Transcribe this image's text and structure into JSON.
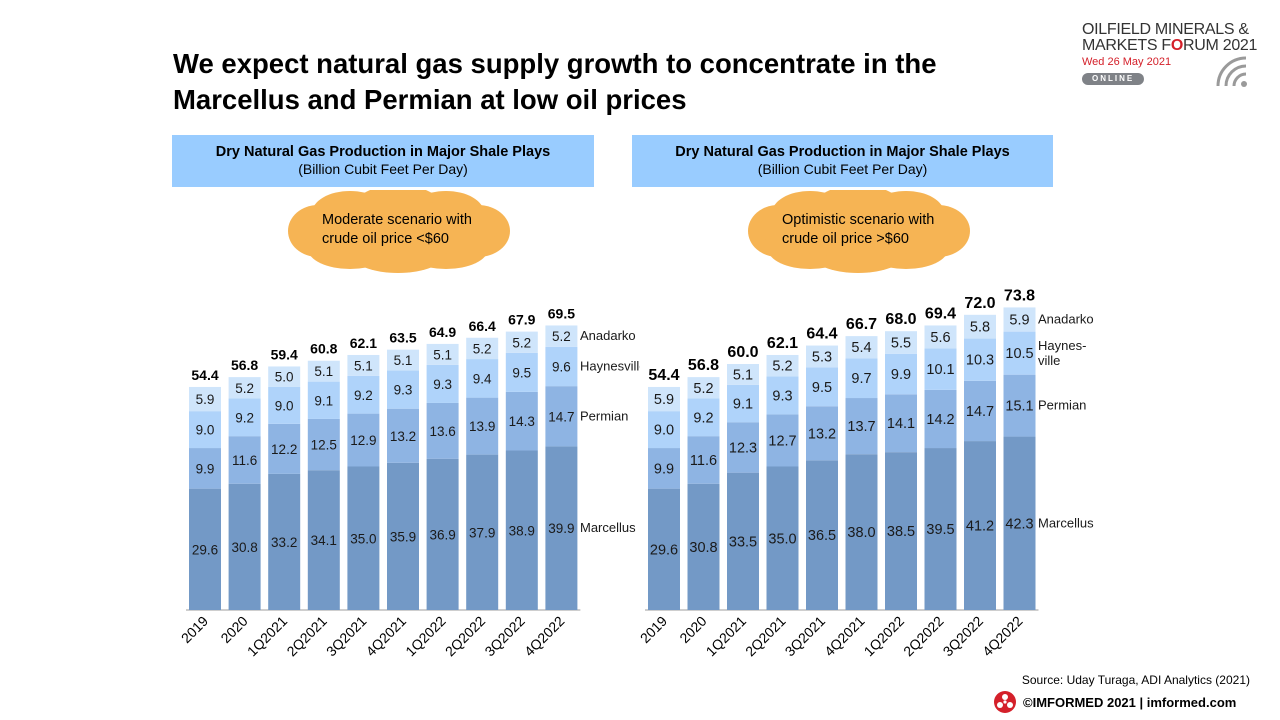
{
  "title_line1": "We expect natural gas supply growth to concentrate in the",
  "title_line2": "Marcellus and Permian at low oil prices",
  "logo": {
    "line1": "OILFIELD MINERALS &",
    "line2_prefix": "MARKETS F",
    "line2_brand": "O",
    "line2_suffix": "RUM 2021",
    "date": "Wed 26 May 2021",
    "online": "ONLINE"
  },
  "source": "Source: Uday Turaga, ADI Analytics (2021)",
  "footer": "©IMFORMED 2021  | imformed.com",
  "colors": {
    "header_bg": "#99ccff",
    "cloud": "#f6b454",
    "marcellus": "#7399c6",
    "permian": "#8eb4e3",
    "haynesville": "#afd3fa",
    "anadarko": "#cfe5fb",
    "brand_red": "#d4202a"
  },
  "chart_data": [
    {
      "type": "bar",
      "stacked": true,
      "title": "Dry Natural Gas Production in Major Shale Plays",
      "subtitle": "(Billion Cubit Feet Per Day)",
      "annotation": [
        "Moderate scenario with",
        "crude oil price <$60"
      ],
      "categories": [
        "2019",
        "2020",
        "1Q2021",
        "2Q2021",
        "3Q2021",
        "4Q2021",
        "1Q2022",
        "2Q2022",
        "3Q2022",
        "4Q2022"
      ],
      "series": [
        {
          "name": "Marcellus",
          "values": [
            29.6,
            30.8,
            33.2,
            34.1,
            35.0,
            35.9,
            36.9,
            37.9,
            38.9,
            39.9
          ]
        },
        {
          "name": "Permian",
          "values": [
            9.9,
            11.6,
            12.2,
            12.5,
            12.9,
            13.2,
            13.6,
            13.9,
            14.3,
            14.7
          ]
        },
        {
          "name": "Haynesville",
          "values": [
            9.0,
            9.2,
            9.0,
            9.1,
            9.2,
            9.3,
            9.3,
            9.4,
            9.5,
            9.6
          ]
        },
        {
          "name": "Anadarko",
          "values": [
            5.9,
            5.2,
            5.0,
            5.1,
            5.1,
            5.1,
            5.1,
            5.2,
            5.2,
            5.2
          ]
        }
      ],
      "totals": [
        54.4,
        56.8,
        59.4,
        60.8,
        62.1,
        63.5,
        64.9,
        66.4,
        67.9,
        69.5
      ],
      "ylim": [
        0,
        74
      ]
    },
    {
      "type": "bar",
      "stacked": true,
      "title": "Dry Natural Gas Production in Major Shale Plays",
      "subtitle": "(Billion Cubit Feet Per Day)",
      "annotation": [
        "Optimistic scenario with",
        "crude oil price >$60"
      ],
      "categories": [
        "2019",
        "2020",
        "1Q2021",
        "2Q2021",
        "3Q2021",
        "4Q2021",
        "1Q2022",
        "2Q2022",
        "3Q2022",
        "4Q2022"
      ],
      "series": [
        {
          "name": "Marcellus",
          "values": [
            29.6,
            30.8,
            33.5,
            35.0,
            36.5,
            38.0,
            38.5,
            39.5,
            41.2,
            42.3
          ]
        },
        {
          "name": "Permian",
          "values": [
            9.9,
            11.6,
            12.3,
            12.7,
            13.2,
            13.7,
            14.1,
            14.2,
            14.7,
            15.1
          ]
        },
        {
          "name": "Haynes-\nville",
          "values": [
            9.0,
            9.2,
            9.1,
            9.3,
            9.5,
            9.7,
            9.9,
            10.1,
            10.3,
            10.5
          ]
        },
        {
          "name": "Anadarko",
          "values": [
            5.9,
            5.2,
            5.1,
            5.2,
            5.3,
            5.4,
            5.5,
            5.6,
            5.8,
            5.9
          ]
        }
      ],
      "totals": [
        54.4,
        56.8,
        60.0,
        62.1,
        64.4,
        66.7,
        68.0,
        69.4,
        72.0,
        73.8
      ],
      "ylim": [
        0,
        74
      ]
    }
  ]
}
